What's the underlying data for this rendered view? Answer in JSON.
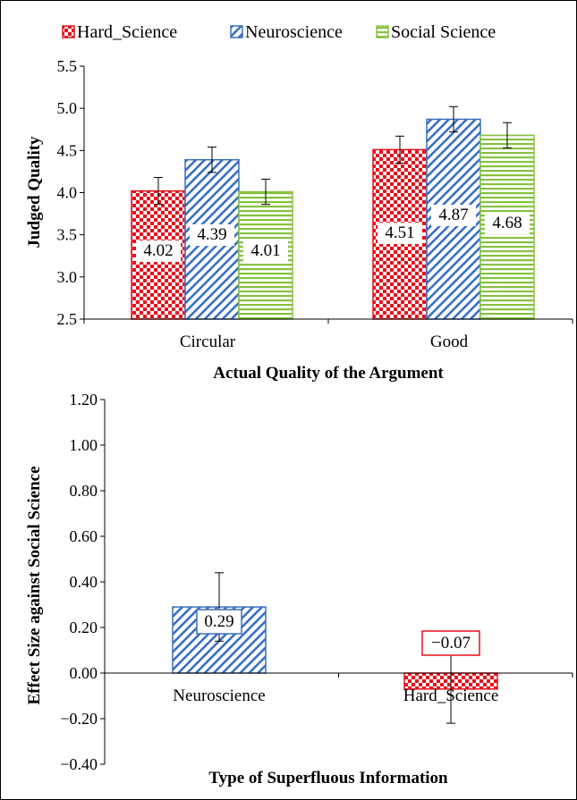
{
  "colors": {
    "hard_science": "#e8101c",
    "neuroscience": "#3a6fc1",
    "social_science": "#86c23f"
  },
  "chart_data": [
    {
      "type": "bar",
      "legend": {
        "placement": "top",
        "entries": [
          "Hard_Science",
          "Neuroscience",
          "Social Science"
        ]
      },
      "categories": [
        "Circular",
        "Good"
      ],
      "series": [
        {
          "name": "Hard_Science",
          "values": [
            4.02,
            4.51
          ],
          "errors": [
            0.16,
            0.16
          ],
          "labels": [
            "4.02",
            "4.51"
          ],
          "pattern": "checker",
          "color_key": "hard_science"
        },
        {
          "name": "Neuroscience",
          "values": [
            4.39,
            4.87
          ],
          "errors": [
            0.15,
            0.15
          ],
          "labels": [
            "4.39",
            "4.87"
          ],
          "pattern": "diagonal",
          "color_key": "neuroscience"
        },
        {
          "name": "Social Science",
          "values": [
            4.01,
            4.68
          ],
          "errors": [
            0.15,
            0.15
          ],
          "labels": [
            "4.01",
            "4.68"
          ],
          "pattern": "horizontal",
          "color_key": "social_science"
        }
      ],
      "xlabel": "Actual Quality of the Argument",
      "ylabel": "Judged Quality",
      "ylim": [
        2.5,
        5.5
      ],
      "yticks": [
        "2.5",
        "3.0",
        "3.5",
        "4.0",
        "4.5",
        "5.0",
        "5.5"
      ],
      "grid": false
    },
    {
      "type": "bar",
      "categories": [
        "Neuroscience",
        "Hard_Science"
      ],
      "series": [
        {
          "values": [
            0.29,
            -0.07
          ],
          "error_low": [
            0.15,
            0.15
          ],
          "error_high": [
            0.15,
            0.15
          ],
          "labels": [
            "0.29",
            "−0.07"
          ],
          "patterns": [
            "diagonal",
            "checker"
          ],
          "color_keys": [
            "neuroscience",
            "hard_science"
          ]
        }
      ],
      "xlabel": "Type of Superfluous Information",
      "ylabel": "Effect Size against Social Science",
      "ylim": [
        -0.4,
        1.2
      ],
      "yticks": [
        "−0.40",
        "−0.20",
        "0.00",
        "0.20",
        "0.40",
        "0.60",
        "0.80",
        "1.00",
        "1.20"
      ],
      "grid": false
    }
  ]
}
